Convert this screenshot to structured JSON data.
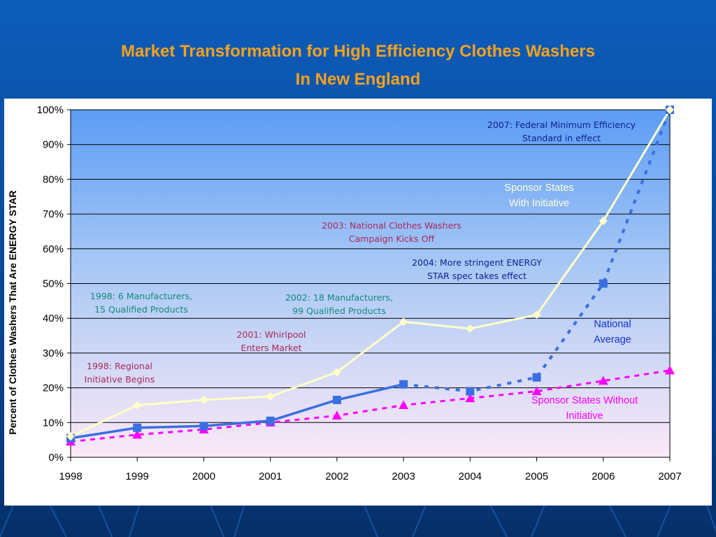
{
  "title_line1": "Market Transformation for High Efficiency Clothes Washers",
  "title_line2": "In New England",
  "chart_data": {
    "type": "line",
    "x": [
      "1998",
      "1999",
      "2000",
      "2001",
      "2002",
      "2003",
      "2004",
      "2005",
      "2006",
      "2007"
    ],
    "ylabel": "Percent of Clothes Washers That Are ENERGY STAR",
    "xlabel": "",
    "ylim": [
      0,
      100
    ],
    "y_ticks": [
      "0%",
      "10%",
      "20%",
      "30%",
      "40%",
      "50%",
      "60%",
      "70%",
      "80%",
      "90%",
      "100%"
    ],
    "grid": true,
    "series": [
      {
        "name": "Sponsor States With Initiative",
        "color": "#ffffc8",
        "marker": "diamond",
        "values": [
          6,
          15,
          16.5,
          17.5,
          24.5,
          39,
          37,
          41,
          68,
          100
        ]
      },
      {
        "name": "National Average",
        "color": "#3a6fe0",
        "marker": "square",
        "values": [
          5.5,
          8.5,
          9,
          10.5,
          16.5,
          21,
          19,
          23,
          50,
          100
        ],
        "solid_until_index": 5
      },
      {
        "name": "Sponsor States Without Initiative",
        "color": "#ff00ff",
        "marker": "triangle",
        "values": [
          4.5,
          6.5,
          8,
          10,
          12,
          15,
          17,
          19,
          22,
          25
        ]
      }
    ],
    "annotations": [
      {
        "line1": "2007:  Federal Minimum Efficiency",
        "line2": "Standard in effect",
        "color": "#0a1f8f"
      },
      {
        "line1": "Sponsor States",
        "line2": "With Initiative",
        "color": "#ffffe0"
      },
      {
        "line1": "2003: National Clothes Washers",
        "line2": "Campaign Kicks Off",
        "color": "#a8285a"
      },
      {
        "line1": "2004:  More stringent  ENERGY",
        "line2": "STAR spec takes effect",
        "color": "#0a1f8f"
      },
      {
        "line1": "1998: 6 Manufacturers,",
        "line2": "15 Qualified Products",
        "color": "#0f8a7a"
      },
      {
        "line1": "2002: 18 Manufacturers,",
        "line2": "99 Qualified Products",
        "color": "#0f8a7a"
      },
      {
        "line1": "National",
        "line2": "Average",
        "color": "#1133cc"
      },
      {
        "line1": "2001: Whirlpool",
        "line2": "Enters Market",
        "color": "#a8285a"
      },
      {
        "line1": "1998: Regional",
        "line2": "Initiative Begins",
        "color": "#a8285a"
      },
      {
        "line1": "Sponsor States Without",
        "line2": "Initiative",
        "color": "#ff00ff"
      }
    ]
  }
}
